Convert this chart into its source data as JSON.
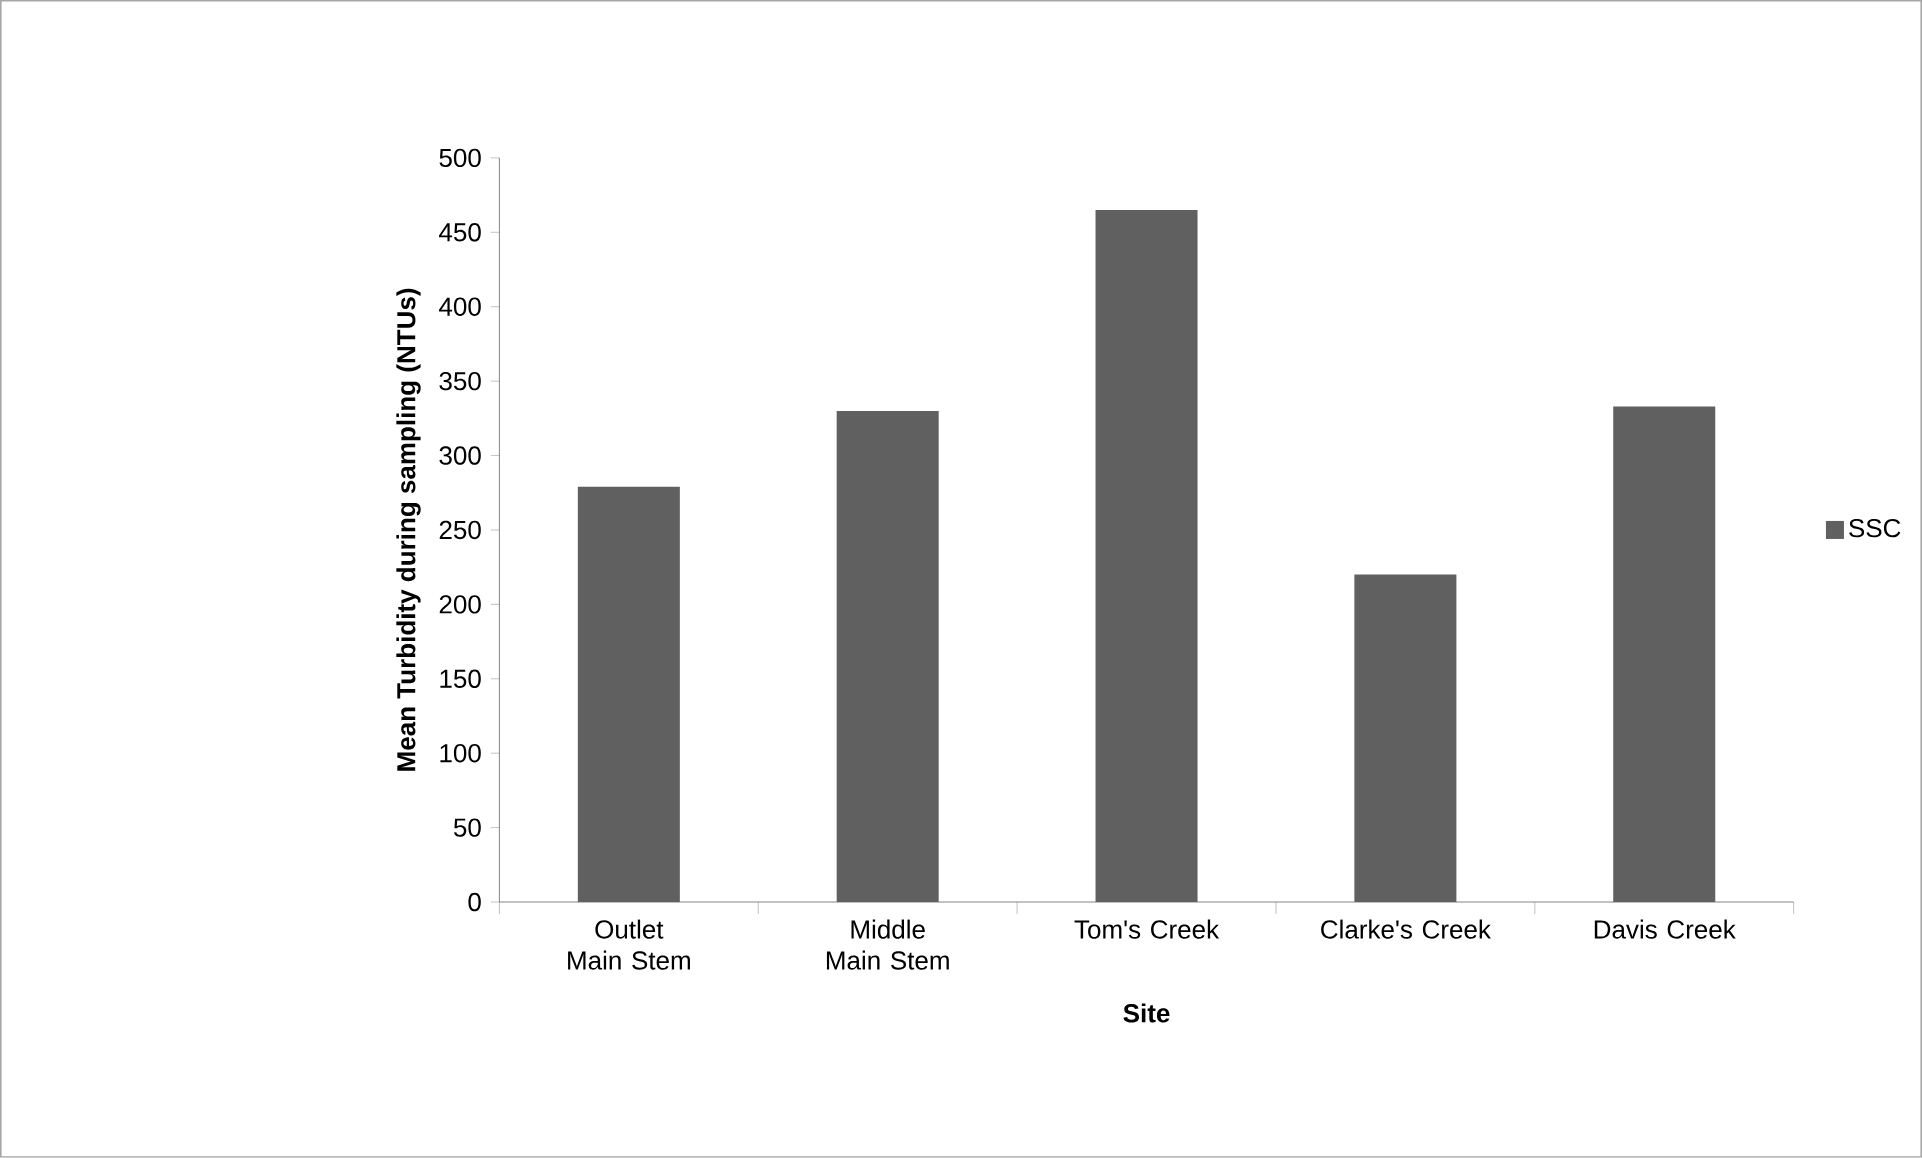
{
  "chart_data": {
    "type": "bar",
    "xlabel": "Site",
    "ylabel": "Mean Turbidity during sampling  (NTUs)",
    "categories": [
      "Outlet Main Stem",
      "Middle Main Stem",
      "Tom's Creek",
      "Clarke's Creek",
      "Davis Creek"
    ],
    "series": [
      {
        "name": "SSC",
        "color": "#606060",
        "values": [
          279,
          330,
          465,
          220,
          333
        ]
      }
    ],
    "ylim": [
      0,
      500
    ],
    "yticks": [
      0,
      50,
      100,
      150,
      200,
      250,
      300,
      350,
      400,
      450,
      500
    ],
    "grid": false,
    "legend": "right"
  }
}
